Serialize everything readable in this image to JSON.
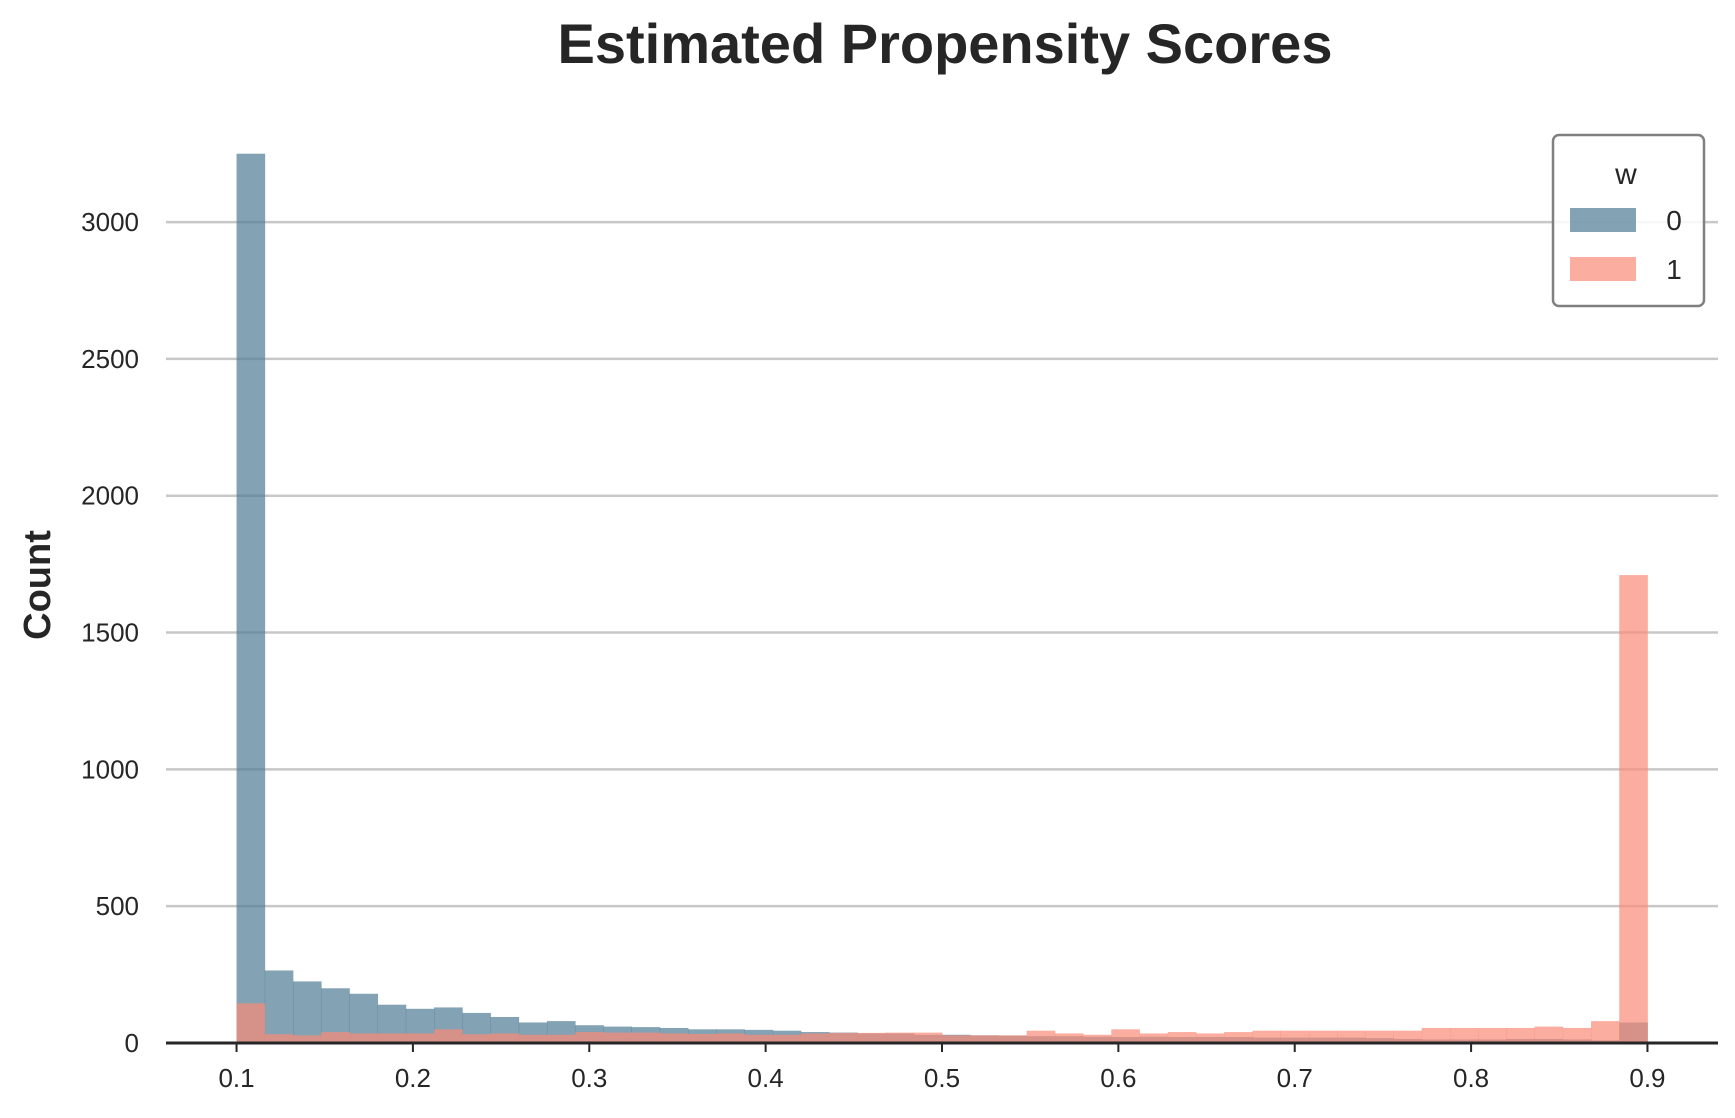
{
  "chart_data": {
    "type": "bar",
    "title": "Estimated Propensity Scores",
    "xlabel": "",
    "ylabel": "Count",
    "xlim": [
      0.06,
      0.94
    ],
    "ylim": [
      0,
      3300
    ],
    "xticks": [
      0.1,
      0.2,
      0.3,
      0.4,
      0.5,
      0.6,
      0.7,
      0.8,
      0.9
    ],
    "xtick_labels": [
      "0.1",
      "0.2",
      "0.3",
      "0.4",
      "0.5",
      "0.6",
      "0.7",
      "0.8",
      "0.9"
    ],
    "yticks": [
      0,
      500,
      1000,
      1500,
      2000,
      2500,
      3000
    ],
    "ytick_labels": [
      "0",
      "500",
      "1000",
      "1500",
      "2000",
      "2500",
      "3000"
    ],
    "grid": "horizontal",
    "legend_placement": "top-right",
    "legend_title": "w",
    "bin_range": [
      0.1,
      0.9
    ],
    "bin_count": 50,
    "series": [
      {
        "name": "0",
        "color": "#4f7a93",
        "values": [
          3250,
          265,
          225,
          200,
          180,
          140,
          125,
          130,
          110,
          95,
          75,
          80,
          65,
          60,
          58,
          55,
          50,
          50,
          48,
          45,
          40,
          38,
          35,
          35,
          30,
          30,
          28,
          27,
          25,
          25,
          23,
          22,
          23,
          22,
          22,
          22,
          20,
          20,
          20,
          20,
          18,
          15,
          13,
          13,
          13,
          15,
          15,
          13,
          10,
          75
        ]
      },
      {
        "name": "1",
        "color": "#fa8c77",
        "values": [
          145,
          32,
          28,
          40,
          35,
          35,
          35,
          50,
          32,
          35,
          30,
          30,
          40,
          38,
          38,
          35,
          33,
          35,
          30,
          30,
          35,
          37,
          37,
          38,
          38,
          28,
          28,
          28,
          45,
          35,
          30,
          50,
          35,
          40,
          35,
          40,
          45,
          45,
          45,
          45,
          45,
          45,
          55,
          55,
          55,
          55,
          60,
          55,
          80,
          1710
        ]
      }
    ]
  }
}
